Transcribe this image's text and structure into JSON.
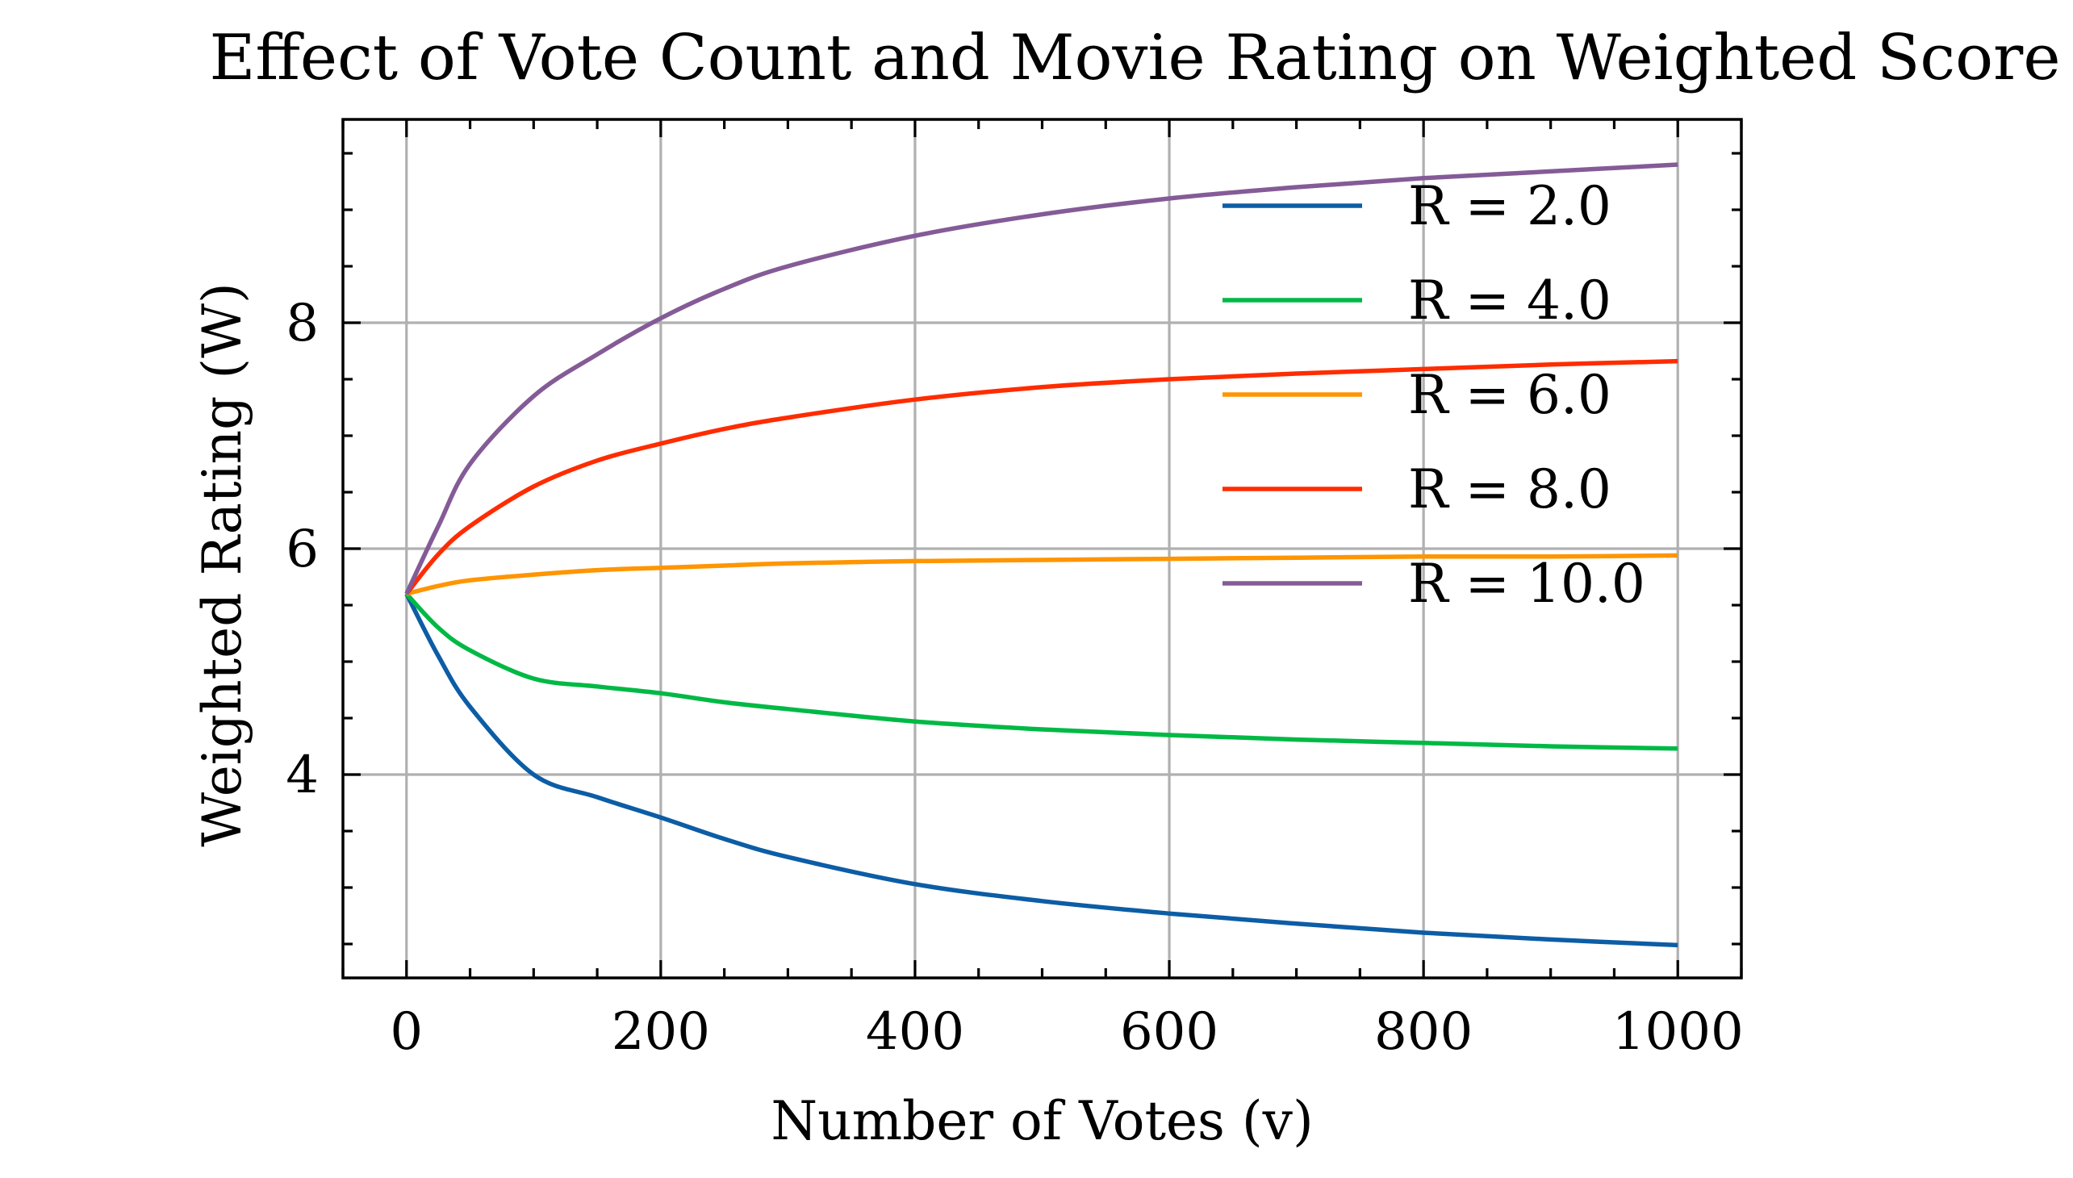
{
  "chart_data": {
    "type": "line",
    "title": "Effect of Vote Count and Movie Rating on Weighted Score",
    "xlabel": "Number of Votes (v)",
    "ylabel": "Weighted Rating (W)",
    "xlim": [
      -50,
      1050
    ],
    "ylim": [
      2.2,
      9.8
    ],
    "xticks": [
      0,
      200,
      400,
      600,
      800,
      1000
    ],
    "xtick_labels": [
      "0",
      "200",
      "400",
      "600",
      "800",
      "1000"
    ],
    "yticks": [
      4,
      6,
      8
    ],
    "ytick_labels": [
      "4",
      "6",
      "8"
    ],
    "grid": true,
    "legend_position": "upper right",
    "x": [
      0,
      25,
      50,
      100,
      150,
      200,
      250,
      300,
      400,
      500,
      600,
      700,
      800,
      900,
      1000
    ],
    "series": [
      {
        "name": "R = 2.0",
        "color": "#0c5da5",
        "values": [
          5.6,
          5.05,
          4.6,
          4.0,
          3.8,
          3.62,
          3.43,
          3.27,
          3.03,
          2.88,
          2.77,
          2.68,
          2.6,
          2.54,
          2.49
        ]
      },
      {
        "name": "R = 4.0",
        "color": "#00b945",
        "values": [
          5.6,
          5.3,
          5.1,
          4.85,
          4.78,
          4.72,
          4.64,
          4.58,
          4.47,
          4.4,
          4.35,
          4.31,
          4.28,
          4.25,
          4.23
        ]
      },
      {
        "name": "R = 6.0",
        "color": "#ff9500",
        "values": [
          5.6,
          5.67,
          5.72,
          5.77,
          5.81,
          5.83,
          5.85,
          5.87,
          5.89,
          5.9,
          5.91,
          5.92,
          5.93,
          5.93,
          5.94
        ]
      },
      {
        "name": "R = 8.0",
        "color": "#ff2c00",
        "values": [
          5.6,
          5.95,
          6.2,
          6.55,
          6.78,
          6.93,
          7.06,
          7.16,
          7.32,
          7.43,
          7.5,
          7.55,
          7.59,
          7.63,
          7.66
        ]
      },
      {
        "name": "R = 10.0",
        "color": "#845b97",
        "values": [
          5.6,
          6.2,
          6.75,
          7.35,
          7.72,
          8.04,
          8.3,
          8.5,
          8.77,
          8.96,
          9.1,
          9.2,
          9.28,
          9.34,
          9.4
        ]
      }
    ]
  }
}
